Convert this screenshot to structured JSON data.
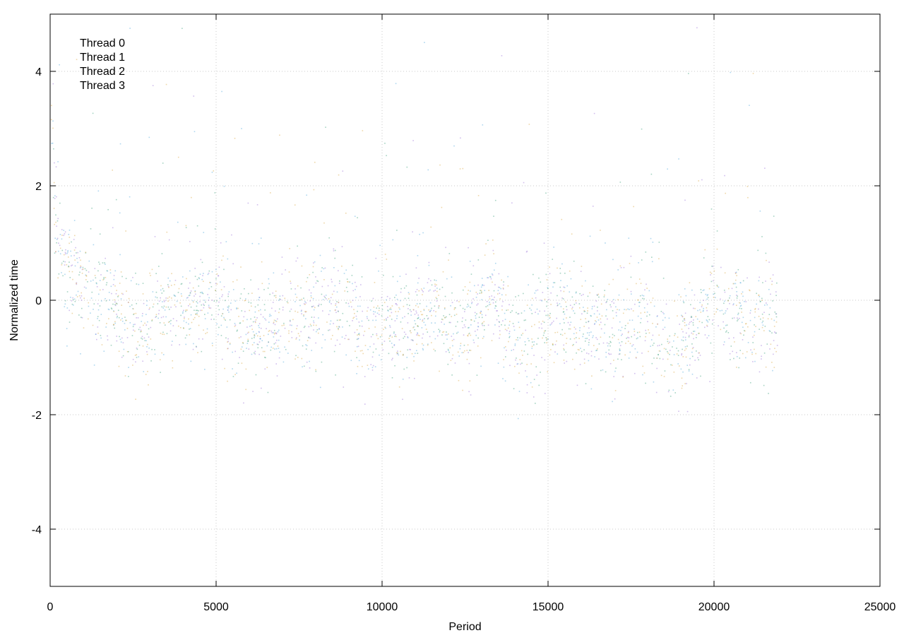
{
  "chart_data": {
    "type": "scatter",
    "title": "",
    "xlabel": "Period",
    "ylabel": "Normalized time",
    "xlim": [
      0,
      25000
    ],
    "ylim": [
      -5,
      5
    ],
    "xticks": [
      0,
      5000,
      10000,
      15000,
      20000,
      25000
    ],
    "yticks": [
      -4,
      -2,
      0,
      2,
      4
    ],
    "xtick_labels": [
      "0",
      "5000",
      "10000",
      "15000",
      "20000",
      "25000"
    ],
    "ytick_labels": [
      "-4",
      "-2",
      "0",
      "2",
      "4"
    ],
    "grid": true,
    "grid_color": "#c8c8c8",
    "legend": {
      "placement": "top-left"
    },
    "x_extent": [
      0,
      21900
    ],
    "series": [
      {
        "name": "Thread 0",
        "color": "#9a6fd6"
      },
      {
        "name": "Thread 1",
        "color": "#3aa07a"
      },
      {
        "name": "Thread 2",
        "color": "#4ea6dc"
      },
      {
        "name": "Thread 3",
        "color": "#d9a640"
      }
    ],
    "level_profile": {
      "x": [
        0,
        150,
        400,
        1000,
        2000,
        2600,
        3200,
        4000,
        5000,
        5500,
        6000,
        6500,
        7500,
        8500,
        9000,
        9500,
        10000,
        10500,
        11000,
        11500,
        12000,
        12500,
        13000,
        13300,
        13800,
        14200,
        15000,
        15500,
        16000,
        16500,
        17000,
        17500,
        18000,
        18700,
        19000,
        19500,
        20000,
        20500,
        21000,
        21900
      ],
      "y": [
        3.0,
        1.5,
        0.6,
        0.2,
        -0.1,
        -0.6,
        -0.1,
        -0.2,
        0.0,
        -0.4,
        -0.6,
        -0.5,
        -0.3,
        -0.2,
        -0.1,
        -0.7,
        -0.3,
        -0.5,
        -0.3,
        -0.2,
        -0.4,
        -0.45,
        -0.2,
        0.2,
        -0.5,
        -0.7,
        -0.3,
        -0.2,
        -0.6,
        -0.3,
        -0.7,
        -0.3,
        -0.4,
        -1.0,
        -0.7,
        -0.5,
        0.0,
        -0.2,
        -0.5,
        -0.3
      ]
    }
  }
}
